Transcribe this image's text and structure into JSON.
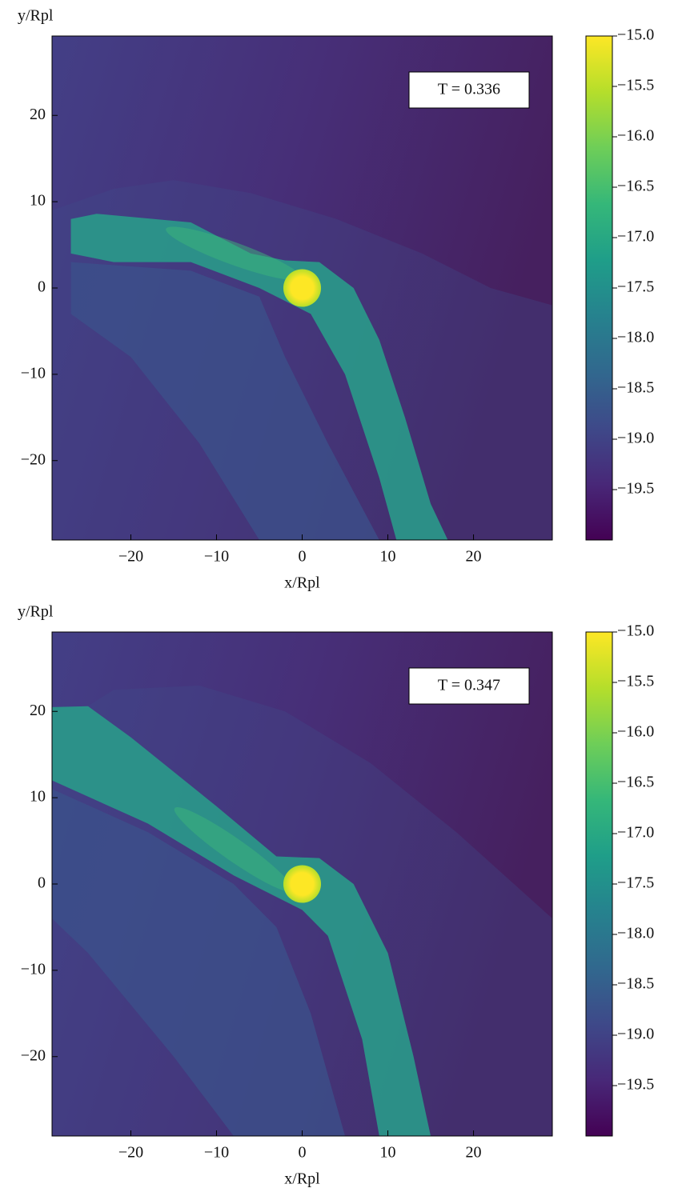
{
  "chart_data": [
    {
      "type": "heatmap",
      "annotation": "T = 0.336",
      "xlabel": "x/Rpl",
      "ylabel": "y/Rpl",
      "xlim": [
        -29.2,
        29.2
      ],
      "ylim": [
        -29.2,
        29.2
      ],
      "xticks": [
        {
          "value": -20,
          "label": "−20"
        },
        {
          "value": -10,
          "label": "−10"
        },
        0,
        10,
        20
      ],
      "yticks": [
        {
          "value": -20,
          "label": "−20"
        },
        {
          "value": -10,
          "label": "−10"
        },
        0,
        10,
        20
      ],
      "clim": [
        -20,
        -15
      ],
      "cticks": [
        {
          "value": -15,
          "label": "−15.0"
        },
        {
          "value": -15.5,
          "label": "−15.5"
        },
        {
          "value": -16,
          "label": "−16.0"
        },
        {
          "value": -16.5,
          "label": "−16.5"
        },
        {
          "value": -17,
          "label": "−17.0"
        },
        {
          "value": -17.5,
          "label": "−17.5"
        },
        {
          "value": -18,
          "label": "−18.0"
        },
        {
          "value": -18.5,
          "label": "−18.5"
        },
        {
          "value": -19,
          "label": "−19.0"
        },
        {
          "value": -19.5,
          "label": "−19.5"
        }
      ],
      "colormap": [
        "#440154",
        "#482878",
        "#3e4989",
        "#31688e",
        "#26828e",
        "#1f9e89",
        "#35b779",
        "#6ece58",
        "#b5de2b",
        "#fde725"
      ]
    },
    {
      "type": "heatmap",
      "annotation": "T = 0.347",
      "xlabel": "x/Rpl",
      "ylabel": "y/Rpl",
      "xlim": [
        -29.2,
        29.2
      ],
      "ylim": [
        -29.2,
        29.2
      ],
      "xticks": [
        {
          "value": -20,
          "label": "−20"
        },
        {
          "value": -10,
          "label": "−10"
        },
        0,
        10,
        20
      ],
      "yticks": [
        {
          "value": -20,
          "label": "−20"
        },
        {
          "value": -10,
          "label": "−10"
        },
        0,
        10,
        20
      ],
      "clim": [
        -20,
        -15
      ],
      "cticks": [
        {
          "value": -15,
          "label": "−15.0"
        },
        {
          "value": -15.5,
          "label": "−15.5"
        },
        {
          "value": -16,
          "label": "−16.0"
        },
        {
          "value": -16.5,
          "label": "−16.5"
        },
        {
          "value": -17,
          "label": "−17.0"
        },
        {
          "value": -17.5,
          "label": "−17.5"
        },
        {
          "value": -18,
          "label": "−18.0"
        },
        {
          "value": -18.5,
          "label": "−18.5"
        },
        {
          "value": -19,
          "label": "−19.0"
        },
        {
          "value": -19.5,
          "label": "−19.5"
        }
      ],
      "colormap": [
        "#440154",
        "#482878",
        "#3e4989",
        "#31688e",
        "#26828e",
        "#1f9e89",
        "#35b779",
        "#6ece58",
        "#b5de2b",
        "#fde725"
      ]
    }
  ]
}
